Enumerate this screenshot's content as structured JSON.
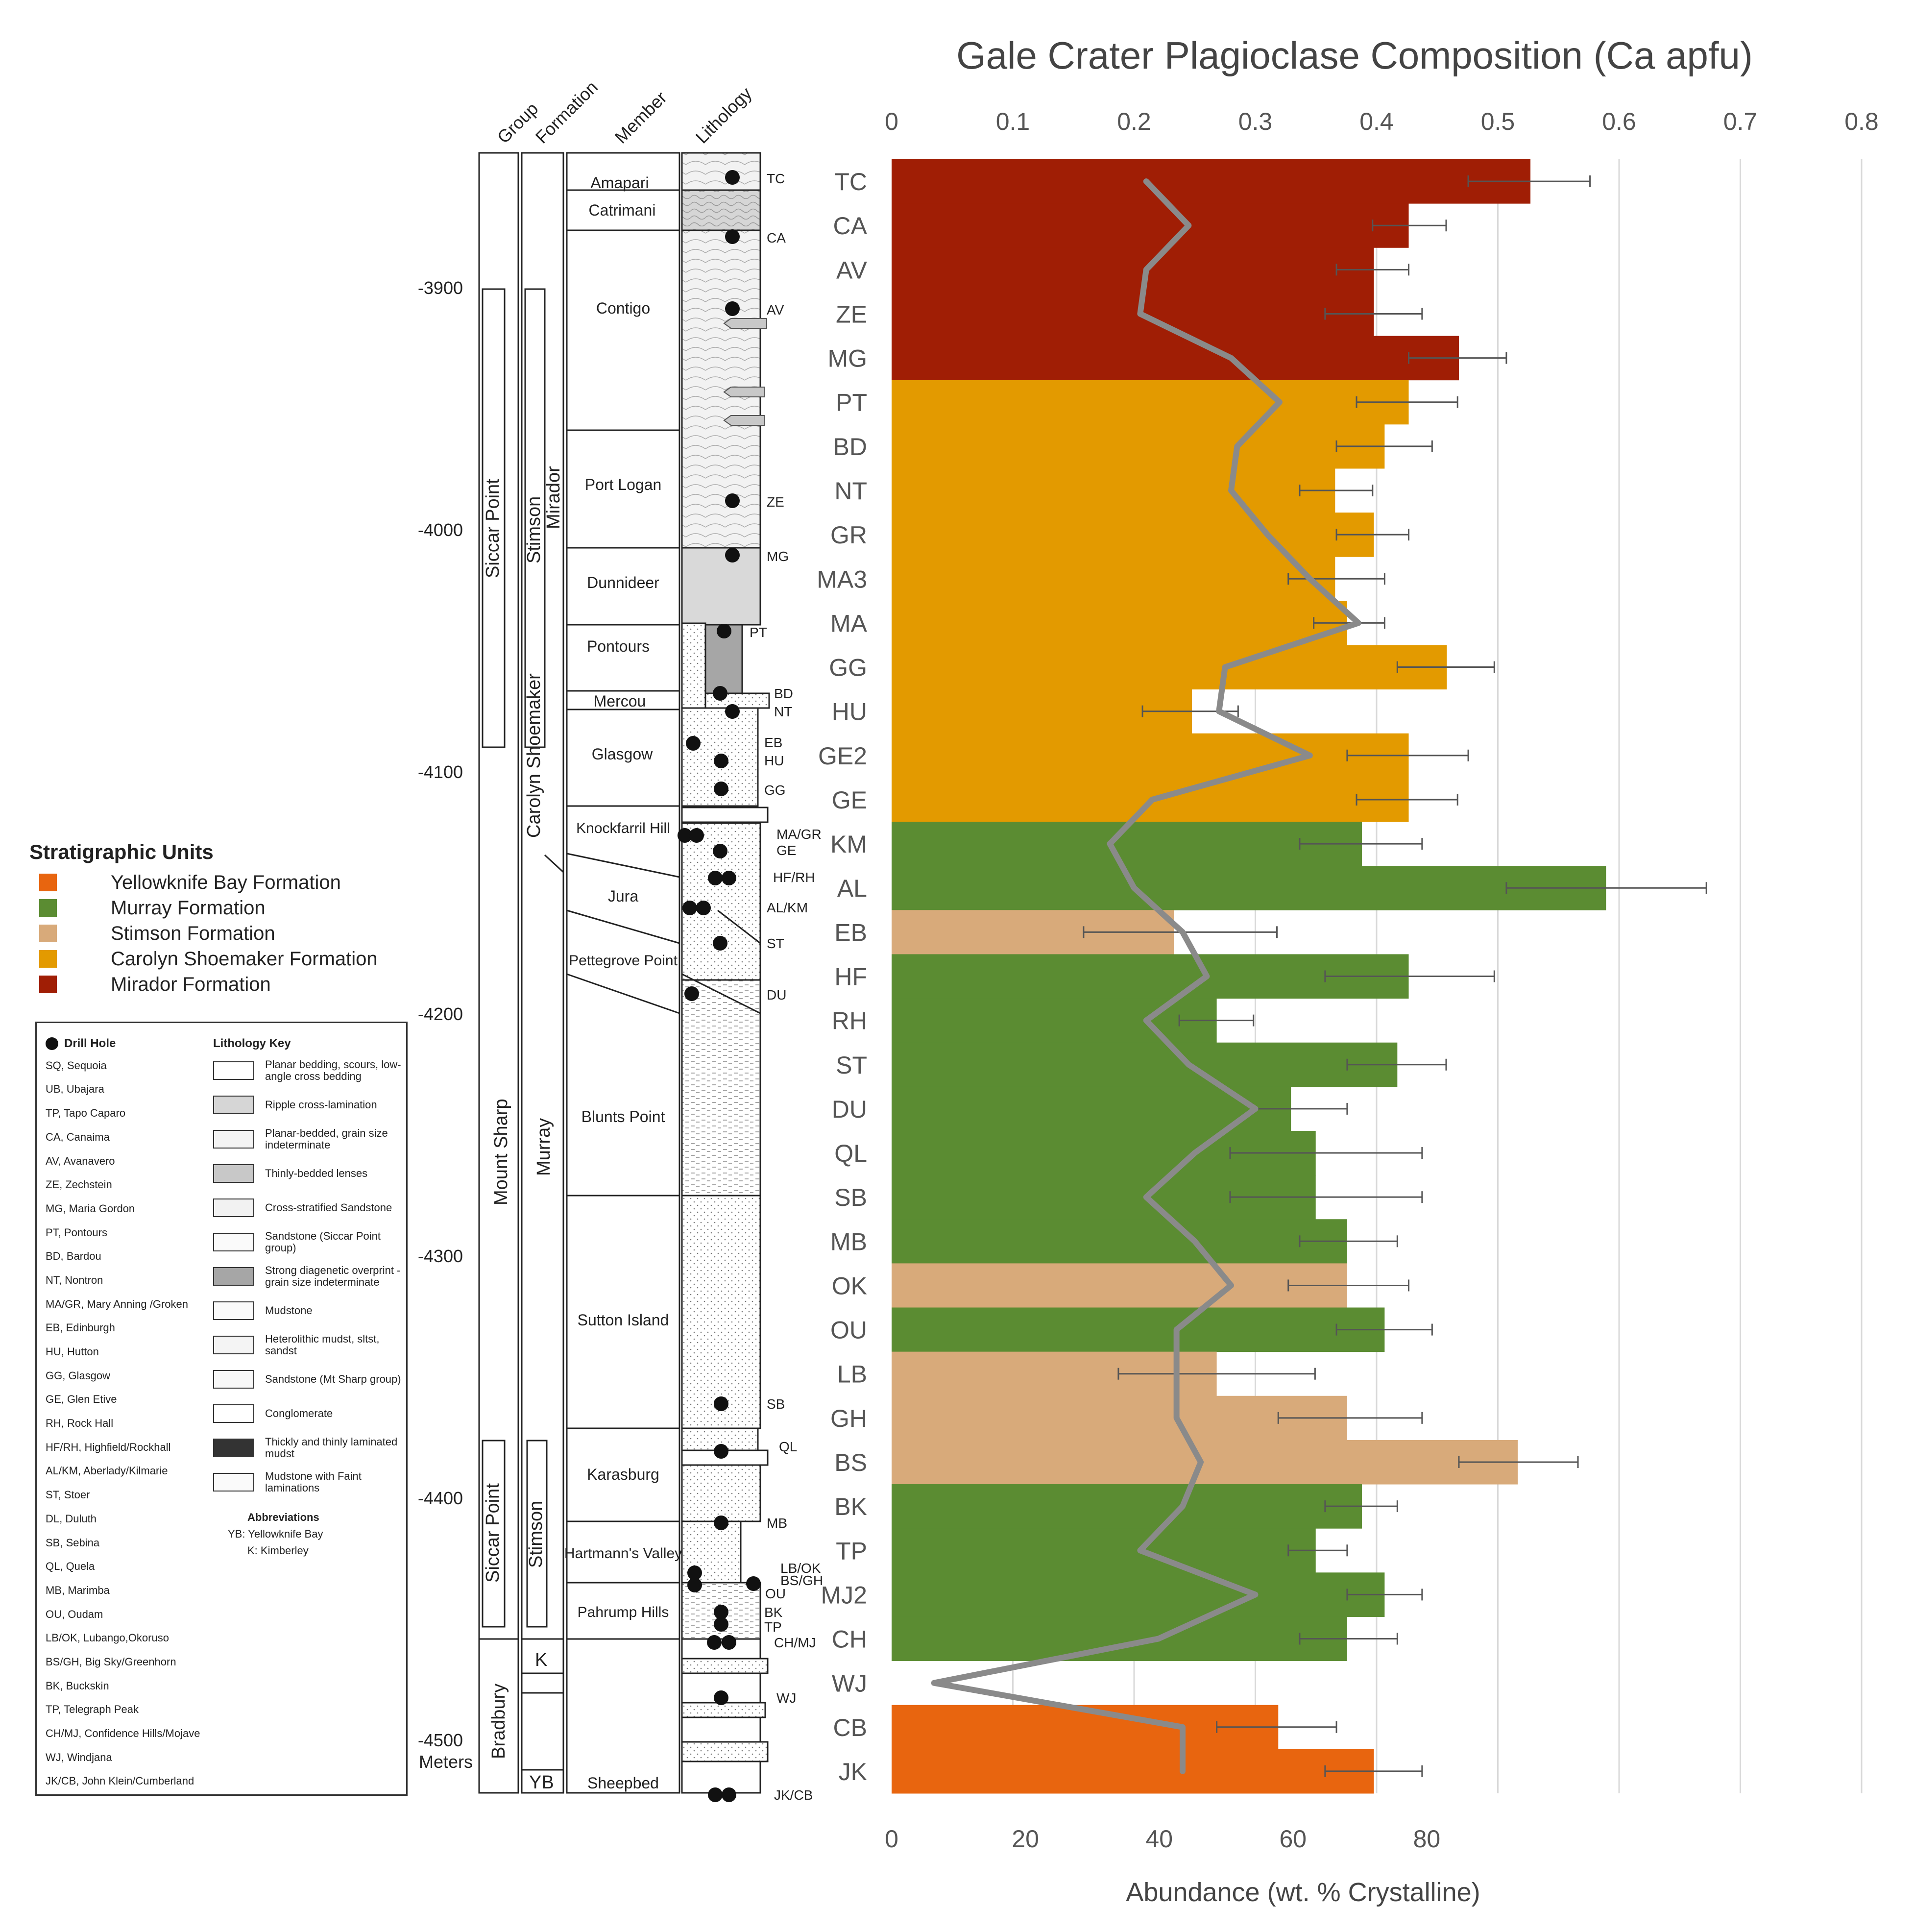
{
  "column": {
    "headers": {
      "group": "Group",
      "formation": "Formation",
      "member": "Member",
      "lithology": "Lithology"
    },
    "elevation_ticks": [
      "-3900",
      "-4000",
      "-4100",
      "-4200",
      "-4300",
      "-4400",
      "-4500"
    ],
    "meters_label": "Meters",
    "groups": {
      "siccar_upper": "Siccar Point",
      "mount_sharp": "Mount Sharp",
      "siccar_lower": "Siccar Point",
      "bradbury": "Bradbury"
    },
    "formations": {
      "stimson_upper": "Stimson",
      "mirador": "Mirador",
      "carolyn_shoemaker": "Carolyn Shoemaker",
      "murray": "Murray",
      "stimson_lower": "Stimson",
      "k": "K",
      "yb": "YB"
    },
    "members": [
      "Amapari",
      "Catrimani",
      "Contigo",
      "Port Logan",
      "Dunnideer",
      "Pontours",
      "Mercou",
      "Glasgow",
      "Knockfarril Hill",
      "Jura",
      "Pettegrove Point",
      "Blunts Point",
      "Sutton Island",
      "Karasburg",
      "Hartmann's Valley",
      "Pahrump Hills",
      "Sheepbed"
    ],
    "drill_labels": [
      "TC",
      "CA",
      "AV",
      "ZE",
      "MG",
      "PT",
      "BD",
      "NT",
      "EB",
      "HU",
      "GG",
      "MA/GR",
      "GE",
      "HF/RH",
      "AL/KM",
      "ST",
      "DU",
      "SB",
      "QL",
      "MB",
      "LB/OK",
      "BS/GH",
      "OU",
      "BK",
      "TP",
      "CH/MJ",
      "WJ",
      "JK/CB"
    ]
  },
  "legend": {
    "title": "Stratigraphic Units",
    "items": [
      {
        "label": "Yellowknife Bay Formation",
        "color": "#e8650f"
      },
      {
        "label": "Murray Formation",
        "color": "#5b8c32"
      },
      {
        "label": "Stimson Formation",
        "color": "#d8aa7a"
      },
      {
        "label": "Carolyn Shoemaker Formation",
        "color": "#e39a00"
      },
      {
        "label": "Mirador Formation",
        "color": "#a01e05"
      }
    ]
  },
  "key": {
    "drill_hole_title": "Drill Hole",
    "abbreviations": [
      "SQ, Sequoia",
      "UB, Ubajara",
      "TP, Tapo Caparo",
      "CA, Canaima",
      "AV, Avanavero",
      "ZE, Zechstein",
      "MG, Maria Gordon",
      "PT, Pontours",
      "BD, Bardou",
      "NT, Nontron",
      "MA/GR, Mary Anning /Groken",
      "EB, Edinburgh",
      "HU, Hutton",
      "GG, Glasgow",
      "GE, Glen Etive",
      "RH, Rock Hall",
      "HF/RH, Highfield/Rockhall",
      "AL/KM, Aberlady/Kilmarie",
      "ST, Stoer",
      "DL, Duluth",
      "SB, Sebina",
      "QL, Quela",
      "MB, Marimba",
      "OU, Oudam",
      "LB/OK, Lubango,Okoruso",
      "BS/GH, Big Sky/Greenhorn",
      "BK, Buckskin",
      "TP, Telegraph Peak",
      "CH/MJ, Confidence Hills/Mojave",
      "WJ, Windjana",
      "JK/CB, John Klein/Cumberland"
    ],
    "lithology_title": "Lithology Key",
    "lithology": [
      "Planar bedding, scours, low-angle cross bedding",
      "Ripple cross-lamination",
      "Planar-bedded, grain size indeterminate",
      "Thinly-bedded lenses",
      "Cross-stratified Sandstone",
      "Sandstone (Siccar Point group)",
      "Strong diagenetic overprint - grain size indeterminate",
      "Mudstone",
      "Heterolithic mudst, sltst, sandst",
      "Sandstone (Mt Sharp group)",
      "Conglomerate",
      "Thickly and thinly laminated mudst",
      "Mudstone with Faint laminations"
    ],
    "abbr_title": "Abbreviations",
    "abbr_items": [
      "YB: Yellowknife Bay",
      "K: Kimberley"
    ]
  },
  "chart_data": {
    "type": "bar",
    "orientation": "horizontal",
    "title": "Gale Crater Plagioclase Composition (Ca apfu)",
    "xlabel": "Abundance (wt. % Crystalline)",
    "x_bottom_ticks": [
      "0",
      "20",
      "40",
      "60",
      "80"
    ],
    "x_bottom_range": [
      0,
      145
    ],
    "x_top_ticks": [
      "0",
      "0.1",
      "0.2",
      "0.3",
      "0.4",
      "0.5",
      "0.6",
      "0.7",
      "0.8"
    ],
    "x_top_range": [
      0,
      0.8
    ],
    "grid": "vertical",
    "categories": [
      "TC",
      "CA",
      "AV",
      "ZE",
      "MG",
      "PT",
      "BD",
      "NT",
      "GR",
      "MA3",
      "MA",
      "GG",
      "HU",
      "GE2",
      "GE",
      "KM",
      "AL",
      "EB",
      "HF",
      "RH",
      "ST",
      "DU",
      "QL",
      "SB",
      "MB",
      "OK",
      "OU",
      "LB",
      "GH",
      "BS",
      "BK",
      "TP",
      "MJ2",
      "CH",
      "WJ",
      "CB",
      "JK"
    ],
    "formations": [
      "Mirador",
      "Mirador",
      "Mirador",
      "Mirador",
      "Mirador",
      "Carolyn Shoemaker",
      "Carolyn Shoemaker",
      "Carolyn Shoemaker",
      "Carolyn Shoemaker",
      "Carolyn Shoemaker",
      "Carolyn Shoemaker",
      "Carolyn Shoemaker",
      "Carolyn Shoemaker",
      "Carolyn Shoemaker",
      "Carolyn Shoemaker",
      "Murray",
      "Murray",
      "Stimson",
      "Murray",
      "Murray",
      "Murray",
      "Murray",
      "Murray",
      "Murray",
      "Murray",
      "Stimson",
      "Murray",
      "Stimson",
      "Stimson",
      "Stimson",
      "Murray",
      "Murray",
      "Murray",
      "Murray",
      "Murray",
      "Yellowknife Bay",
      "Yellowknife Bay"
    ],
    "series": [
      {
        "name": "Abundance (wt. % Crystalline)",
        "axis": "bottom",
        "values": [
          95.5,
          77.3,
          72.1,
          72.1,
          84.8,
          77.3,
          73.7,
          66.3,
          72.1,
          66.3,
          68.1,
          83.0,
          44.9,
          77.3,
          77.3,
          70.3,
          106.8,
          42.2,
          77.3,
          48.6,
          75.6,
          59.7,
          63.4,
          63.4,
          68.1,
          68.1,
          73.7,
          48.6,
          68.1,
          93.6,
          70.3,
          63.4,
          73.7,
          68.1,
          0,
          57.8,
          72.1
        ],
        "error_low": [
          86.2,
          71.9,
          66.5,
          64.8,
          77.3,
          69.5,
          66.5,
          61.0,
          66.5,
          59.3,
          63.1,
          75.6,
          37.5,
          68.1,
          69.5,
          61.0,
          91.9,
          28.7,
          64.8,
          43.0,
          68.1,
          53.9,
          50.6,
          50.6,
          61.0,
          59.3,
          66.5,
          33.9,
          57.8,
          84.8,
          64.8,
          59.3,
          68.1,
          61.0,
          0,
          48.6,
          64.8
        ],
        "error_high": [
          104.4,
          82.9,
          77.3,
          79.3,
          91.9,
          84.6,
          80.8,
          71.9,
          77.3,
          73.7,
          73.7,
          90.1,
          51.8,
          86.2,
          84.6,
          79.3,
          121.8,
          57.6,
          90.1,
          54.1,
          82.9,
          68.1,
          79.3,
          79.3,
          75.6,
          77.3,
          80.8,
          63.3,
          79.3,
          102.6,
          75.6,
          68.1,
          79.3,
          75.6,
          0,
          66.5,
          79.3
        ]
      },
      {
        "name": "Ca apfu",
        "axis": "top",
        "type": "line",
        "values": [
          0.21,
          0.245,
          0.21,
          0.205,
          0.28,
          0.32,
          0.285,
          0.28,
          0.31,
          0.345,
          0.385,
          0.275,
          0.27,
          0.345,
          0.215,
          0.18,
          0.2,
          0.24,
          0.26,
          0.21,
          0.245,
          0.3,
          0.25,
          0.21,
          0.25,
          0.28,
          0.235,
          0.235,
          0.235,
          0.255,
          0.24,
          0.205,
          0.3,
          0.22,
          0.035,
          0.24,
          0.24
        ]
      }
    ]
  }
}
